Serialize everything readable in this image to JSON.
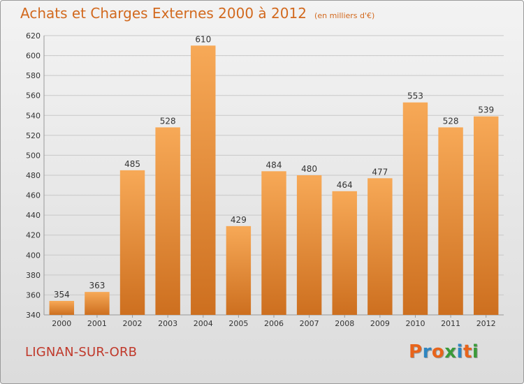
{
  "header": {
    "title": "Achats et Charges Externes 2000 à 2012",
    "subtitle": "(en milliers d'€)"
  },
  "footer": {
    "commune": "LIGNAN-SUR-ORB",
    "logo_text": "Proxiti",
    "logo_letters": [
      {
        "char": "P",
        "color": "#e8641b"
      },
      {
        "char": "r",
        "color": "#2e86c1"
      },
      {
        "char": "o",
        "color": "#e8641b"
      },
      {
        "char": "x",
        "color": "#3a9a3a"
      },
      {
        "char": "i",
        "color": "#2e86c1"
      },
      {
        "char": "t",
        "color": "#e8641b"
      },
      {
        "char": "i",
        "color": "#3a9a3a"
      }
    ]
  },
  "colors": {
    "bar_top": "#f7a957",
    "bar_bottom": "#cd6f1f",
    "grid": "#c8c8c8",
    "label": "#333333",
    "accent": "#d2691e"
  },
  "chart_data": {
    "type": "bar",
    "title": "Achats et Charges Externes 2000 à 2012",
    "subtitle": "(en milliers d'€)",
    "categories": [
      "2000",
      "2001",
      "2002",
      "2003",
      "2004",
      "2005",
      "2006",
      "2007",
      "2008",
      "2009",
      "2010",
      "2011",
      "2012"
    ],
    "values": [
      354,
      363,
      485,
      528,
      610,
      429,
      484,
      480,
      464,
      477,
      553,
      528,
      539
    ],
    "ylim": [
      340,
      620
    ],
    "yticks": [
      340,
      360,
      380,
      400,
      420,
      440,
      460,
      480,
      500,
      520,
      540,
      560,
      580,
      600,
      620
    ],
    "grid": true,
    "data_labels": true
  }
}
